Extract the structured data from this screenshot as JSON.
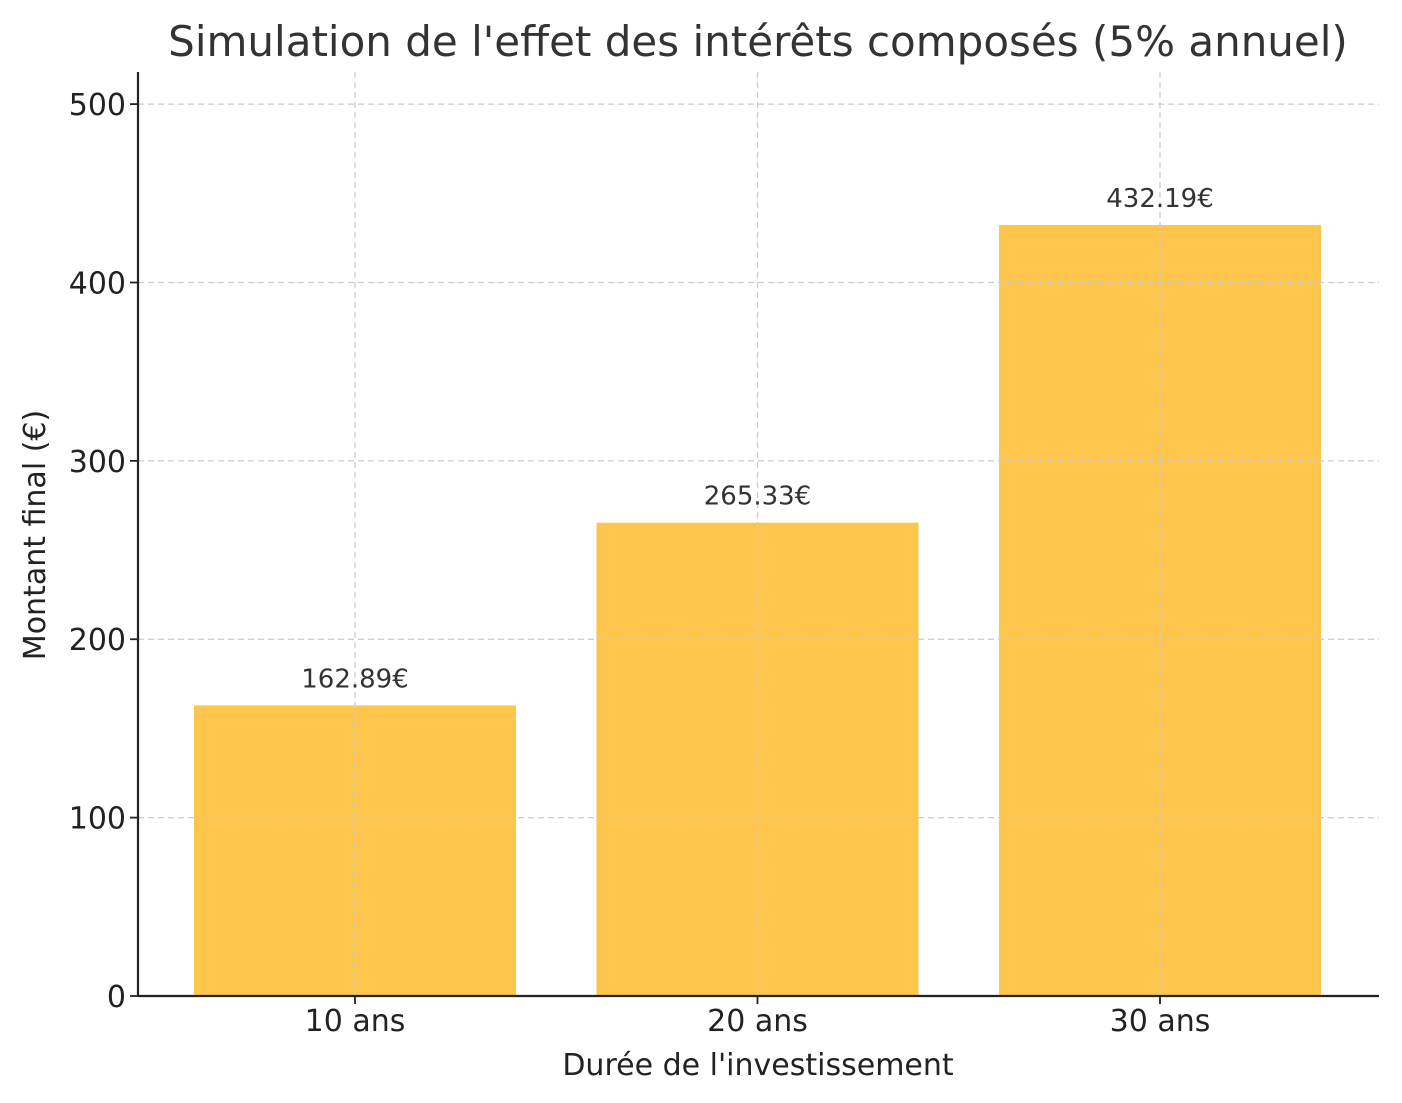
{
  "chart_data": {
    "type": "bar",
    "title": "Simulation de l'effet des intérêts composés (5% annuel)",
    "xlabel": "Durée de l'investissement",
    "ylabel": "Montant final (€)",
    "categories": [
      "10 ans",
      "20 ans",
      "30 ans"
    ],
    "values": [
      162.89,
      265.33,
      432.19
    ],
    "value_labels": [
      "162.89€",
      "265.33€",
      "432.19€"
    ],
    "ylim": [
      0,
      518
    ],
    "yticks": [
      0,
      100,
      200,
      300,
      400,
      500
    ],
    "ytick_labels": [
      "0",
      "100",
      "200",
      "300",
      "400",
      "500"
    ],
    "grid": true,
    "bar_color": "#fdc54c",
    "legend": false
  }
}
